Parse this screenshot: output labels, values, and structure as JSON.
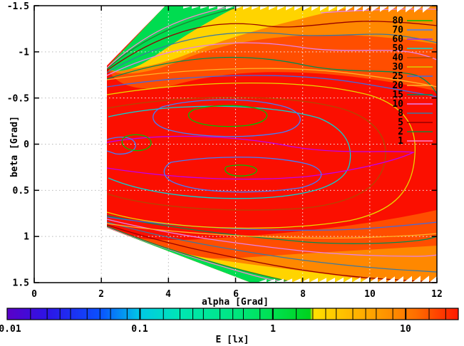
{
  "axes": {
    "x": {
      "label": "alpha [Grad]",
      "range": [
        0,
        12
      ],
      "ticks": [
        "0",
        "2",
        "4",
        "6",
        "8",
        "10",
        "12"
      ],
      "tick_values": [
        0,
        2,
        4,
        6,
        8,
        10,
        12
      ],
      "grid_values": [
        2,
        4,
        6,
        8,
        10
      ]
    },
    "y": {
      "label": "beta [Grad]",
      "range": [
        -1.5,
        1.5
      ],
      "inverted": true,
      "ticks": [
        "-1.5",
        "-1",
        "-0.5",
        "0",
        "0.5",
        "1",
        "1.5"
      ],
      "tick_values": [
        -1.5,
        -1,
        -0.5,
        0,
        0.5,
        1,
        1.5
      ],
      "grid_values": [
        -1,
        -0.5,
        0,
        0.5,
        1
      ]
    }
  },
  "legend": {
    "levels": [
      {
        "label": "80",
        "color": "#00c000"
      },
      {
        "label": "70",
        "color": "#4080ff"
      },
      {
        "label": "60",
        "color": "#a428f0"
      },
      {
        "label": "50",
        "color": "#00d8d8"
      },
      {
        "label": "40",
        "color": "#b04a00"
      },
      {
        "label": "30",
        "color": "#d8cc00"
      },
      {
        "label": "25",
        "color": "#4169e1"
      },
      {
        "label": "20",
        "color": "#ffb428"
      },
      {
        "label": "15",
        "color": "#008c50"
      },
      {
        "label": "10",
        "color": "#e682ee"
      },
      {
        "label": "8",
        "color": "#3c78a0"
      },
      {
        "label": "5",
        "color": "#960000"
      },
      {
        "label": "2",
        "color": "#1e8232"
      },
      {
        "label": "1",
        "color": "#ff82d2"
      }
    ]
  },
  "colorbar": {
    "label": "E [lx]",
    "scale": "log",
    "range": [
      0.01,
      25
    ],
    "tick_labels": [
      {
        "text": "0.01",
        "value": 0.01
      },
      {
        "text": "0.1",
        "value": 0.1
      },
      {
        "text": "1",
        "value": 1
      },
      {
        "text": "10",
        "value": 10
      }
    ],
    "major_values": [
      0.1,
      1,
      10
    ],
    "divider_values": [
      0.015,
      0.02,
      0.025,
      0.03,
      0.04,
      0.05,
      0.06,
      0.08,
      0.1,
      0.15,
      0.2,
      0.25,
      0.3,
      0.4,
      0.5,
      0.6,
      0.8,
      1,
      1.5,
      2,
      2.5,
      3,
      4,
      5,
      6,
      8,
      10,
      15,
      20
    ],
    "gradient": [
      [
        "0.01",
        "#5a00c8"
      ],
      [
        "0.02",
        "#2d14e6"
      ],
      [
        "0.05",
        "#0a50ff"
      ],
      [
        "0.1",
        "#00c8e6"
      ],
      [
        "0.2",
        "#00e6b4"
      ],
      [
        "0.5",
        "#00e682"
      ],
      [
        "1",
        "#00e150"
      ],
      [
        "1.9",
        "#00d21e"
      ],
      [
        "2",
        "#ffe100"
      ],
      [
        "3",
        "#ffc800"
      ],
      [
        "5",
        "#ffaa00"
      ],
      [
        "8",
        "#ff8c00"
      ],
      [
        "12",
        "#ff6e00"
      ],
      [
        "25",
        "#ff1900"
      ]
    ]
  },
  "chart_data": {
    "type": "heatmap",
    "subtype": "filled-contour-map",
    "title": "",
    "xlabel": "alpha [Grad]",
    "ylabel": "beta [Grad]",
    "xlim": [
      0,
      12
    ],
    "ylim": [
      -1.5,
      1.5
    ],
    "y_axis_top_value": -1.5,
    "grid": true,
    "colorbar_label": "E [lx]",
    "colorbar_scale": "log",
    "colorbar_range": [
      0.01,
      25
    ],
    "contour_levels": [
      1,
      2,
      5,
      8,
      10,
      15,
      20,
      25,
      30,
      40,
      50,
      60,
      70,
      80
    ],
    "level_colors": [
      "#ff82d2",
      "#1e8232",
      "#960000",
      "#3c78a0",
      "#e682ee",
      "#008c50",
      "#ffb428",
      "#4169e1",
      "#d8cc00",
      "#b04a00",
      "#00d8d8",
      "#a428f0",
      "#4080ff",
      "#00c000"
    ],
    "data_region": {
      "description": "fan-shaped coverage: no data for alpha < ~2.15; at alpha=2.15 data spans beta -0.85..0.85, widening until full beta range at alpha ~3.9 (upper edge) and ~6.4 (lower edge); jagged sawtooth data boundary along top and bottom edges toward alpha=12",
      "alpha_min": 2.15
    },
    "peaks": [
      {
        "alpha": 5.8,
        "beta": -0.31,
        "E_lx": ">80"
      },
      {
        "alpha": 3.1,
        "beta": 0.0,
        "E_lx": ">80"
      },
      {
        "alpha": 6.2,
        "beta": 0.29,
        "E_lx": ">80"
      }
    ],
    "field_summary": "illumination E peaks >80 lx in red core around beta 0, alpha 3-10; falls to ~1-2 lx (green) along diagonal data edges; ~5-10 lx (orange) near top/bottom-right borders"
  }
}
